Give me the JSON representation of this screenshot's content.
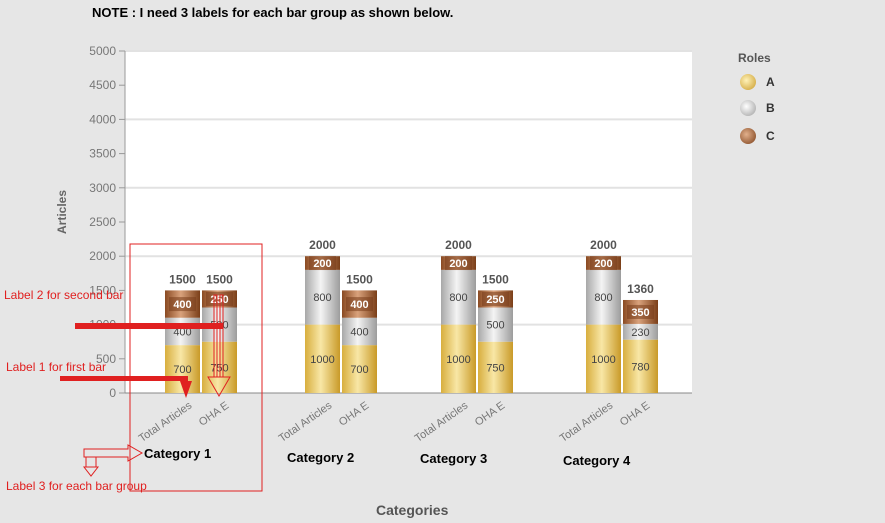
{
  "note": "NOTE : I need 3 labels for each bar group as shown below.",
  "chart_data": {
    "type": "bar",
    "stacked": true,
    "ylabel": "Articles",
    "xlabel": "Categories",
    "ylim": [
      0,
      5000
    ],
    "yticks": [
      0,
      500,
      1000,
      1500,
      2000,
      2500,
      3000,
      3500,
      4000,
      4500,
      5000
    ],
    "grid": true,
    "legend_title": "Roles",
    "legend_position": "top-right",
    "groups": [
      "Category 1",
      "Category 2",
      "Category 3",
      "Category 4"
    ],
    "bars_per_group": [
      "Total Articles",
      "OHA E"
    ],
    "series": [
      {
        "name": "A",
        "color": "#e8c860",
        "values": [
          [
            700,
            750
          ],
          [
            1000,
            700
          ],
          [
            1000,
            750
          ],
          [
            1000,
            780
          ]
        ]
      },
      {
        "name": "B",
        "color": "#c8c8c8",
        "values": [
          [
            400,
            500
          ],
          [
            800,
            400
          ],
          [
            800,
            500
          ],
          [
            800,
            230
          ]
        ]
      },
      {
        "name": "C",
        "color": "#a8643a",
        "values": [
          [
            400,
            250
          ],
          [
            200,
            400
          ],
          [
            200,
            250
          ],
          [
            200,
            350
          ]
        ]
      }
    ],
    "totals": [
      [
        1500,
        1500
      ],
      [
        2000,
        1500
      ],
      [
        2000,
        1500
      ],
      [
        2000,
        1360
      ]
    ],
    "segment_labels": [
      [
        [
          "700",
          "400",
          "400"
        ],
        [
          "750",
          "500",
          "250"
        ]
      ],
      [
        [
          "1000",
          "800",
          "200"
        ],
        [
          "700",
          "400",
          "400"
        ]
      ],
      [
        [
          "1000",
          "800",
          "200"
        ],
        [
          "750",
          "500",
          "250"
        ]
      ],
      [
        [
          "1000",
          "800",
          "200"
        ],
        [
          "780",
          "230",
          "350"
        ]
      ]
    ],
    "total_labels": [
      [
        "1500",
        "1500"
      ],
      [
        "2000",
        "1500"
      ],
      [
        "2000",
        "1500"
      ],
      [
        "2000",
        "1360"
      ]
    ]
  },
  "annotations": {
    "label1": "Label 1 for first bar",
    "label2": "Label 2 for second bar",
    "label3": "Label 3 for each bar group",
    "color": "#e02020"
  }
}
